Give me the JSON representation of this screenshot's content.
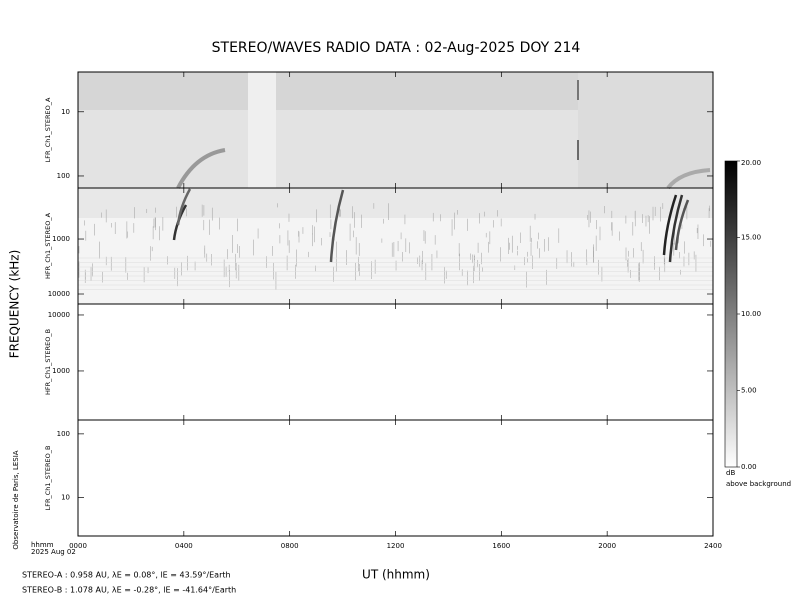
{
  "chart_data": {
    "type": "spectrogram",
    "title": "STEREO/WAVES  RADIO  DATA : 02-Aug-2025  DOY 214",
    "xlabel": "UT (hhmm)",
    "ylabel": "FREQUENCY (kHz)",
    "xlim": [
      0,
      2400
    ],
    "xticks": [
      {
        "value": 0,
        "label": "0000"
      },
      {
        "value": 400,
        "label": "0400"
      },
      {
        "value": 800,
        "label": "0800"
      },
      {
        "value": 1200,
        "label": "1200"
      },
      {
        "value": 1600,
        "label": "1600"
      },
      {
        "value": 2000,
        "label": "2000"
      },
      {
        "value": 2400,
        "label": "2400"
      }
    ],
    "x_unit_label": "hhmm",
    "date_label": "2025 Aug 02",
    "log_y": true,
    "panels": [
      {
        "name": "LFR_Ch1_STEREO_A",
        "ylim": [
          154,
          2.4
        ],
        "yticks": [
          10,
          100
        ]
      },
      {
        "name": "HFR_Ch1_STEREO_A",
        "ylim": [
          15200,
          118
        ],
        "yticks": [
          1000,
          10000
        ]
      },
      {
        "name": "HFR_Ch1_STEREO_B",
        "ylim": [
          133,
          15700
        ],
        "yticks": [
          1000,
          10000
        ]
      },
      {
        "name": "LFR_Ch1_STEREO_B",
        "ylim": [
          2.5,
          165
        ],
        "yticks": [
          10,
          100
        ]
      }
    ],
    "colorbar": {
      "clim": [
        0,
        20
      ],
      "ticks": [
        {
          "value": 0,
          "label": "0.00"
        },
        {
          "value": 5,
          "label": "5.00"
        },
        {
          "value": 10,
          "label": "10.00"
        },
        {
          "value": 15,
          "label": "15.00"
        },
        {
          "value": 20,
          "label": "20.00"
        }
      ],
      "unit": "dB",
      "caption": "above background"
    },
    "credit": "Observatoire de Paris, LESIA",
    "footnotes": [
      "STEREO-A : 0.958 AU, λE = 0.08°, lE = 43.59°/Earth",
      "STEREO-B : 1.078 AU, λE = -0.28°, lE = -41.64°/Earth"
    ]
  }
}
